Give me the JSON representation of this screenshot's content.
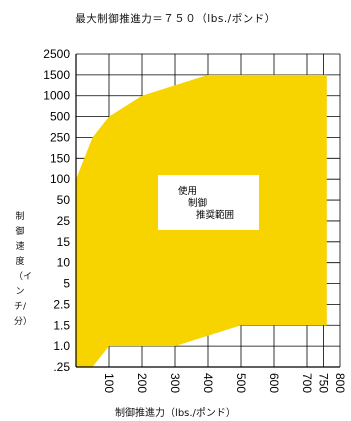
{
  "chart_data": {
    "type": "area",
    "title": "最大制御推進力＝７５０（lbs./ポンド）",
    "xlabel": "制御推進力（lbs./ポンド）",
    "ylabel": "制御速度（インチ/分）",
    "x_ticks": [
      100,
      200,
      300,
      400,
      500,
      600,
      700,
      750,
      800
    ],
    "xlim": [
      0,
      800
    ],
    "y_ticks": [
      ".25",
      "1.0",
      "1.5",
      "2.5",
      "5",
      "10",
      "15",
      "25",
      "50",
      "100",
      "150",
      "250",
      "500",
      "1000",
      "1500",
      "2500"
    ],
    "grid": true,
    "fill_color": "#f7d300",
    "series": [
      {
        "upper": [
          [
            0,
            "100"
          ],
          [
            50,
            "250"
          ],
          [
            100,
            "500"
          ],
          [
            200,
            "1000"
          ],
          [
            400,
            "1500"
          ],
          [
            600,
            "1500"
          ],
          [
            760,
            "1500"
          ]
        ],
        "lower": [
          [
            0,
            ".25"
          ],
          [
            50,
            ".25"
          ],
          [
            100,
            "1.0"
          ],
          [
            300,
            "1.0"
          ],
          [
            500,
            "1.5"
          ],
          [
            760,
            "1.5"
          ]
        ]
      }
    ],
    "annotations": [
      "使用",
      "制御",
      "推奨範囲"
    ]
  },
  "ylabel_chars": [
    "制",
    "御",
    "速",
    "度",
    "（",
    "イ",
    "ン",
    "チ",
    "/",
    "分",
    "）"
  ]
}
